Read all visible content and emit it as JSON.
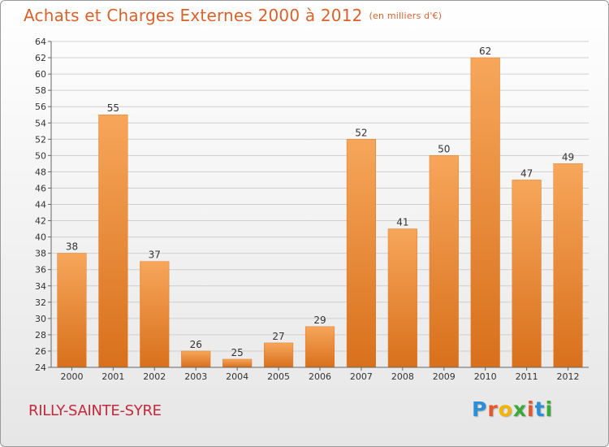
{
  "title": "Achats et Charges Externes 2000 à 2012",
  "unit": "(en milliers d'€)",
  "city": "RILLY-SAINTE-SYRE",
  "brand": {
    "letters": [
      "P",
      "r",
      "o",
      "x",
      "i",
      "t",
      "i"
    ],
    "colors": [
      "#2a8fd6",
      "#e8552a",
      "#f4b400",
      "#3aa935",
      "#e8552a",
      "#2a8fd6",
      "#3aa935"
    ]
  },
  "colors": {
    "bar_top": "#f7a65a",
    "bar_bottom": "#d8701c",
    "title": "#d9622b",
    "city": "#c4283a"
  },
  "chart_data": {
    "type": "bar",
    "categories": [
      "2000",
      "2001",
      "2002",
      "2003",
      "2004",
      "2005",
      "2006",
      "2007",
      "2008",
      "2009",
      "2010",
      "2011",
      "2012"
    ],
    "values": [
      38,
      55,
      37,
      26,
      25,
      27,
      29,
      52,
      41,
      50,
      62,
      47,
      49
    ],
    "title": "Achats et Charges Externes 2000 à 2012",
    "xlabel": "",
    "ylabel": "",
    "ylim": [
      24,
      64
    ],
    "yticks": [
      24,
      26,
      28,
      30,
      32,
      34,
      36,
      38,
      40,
      42,
      44,
      46,
      48,
      50,
      52,
      54,
      56,
      58,
      60,
      62,
      64
    ],
    "grid": true,
    "data_labels": true
  }
}
